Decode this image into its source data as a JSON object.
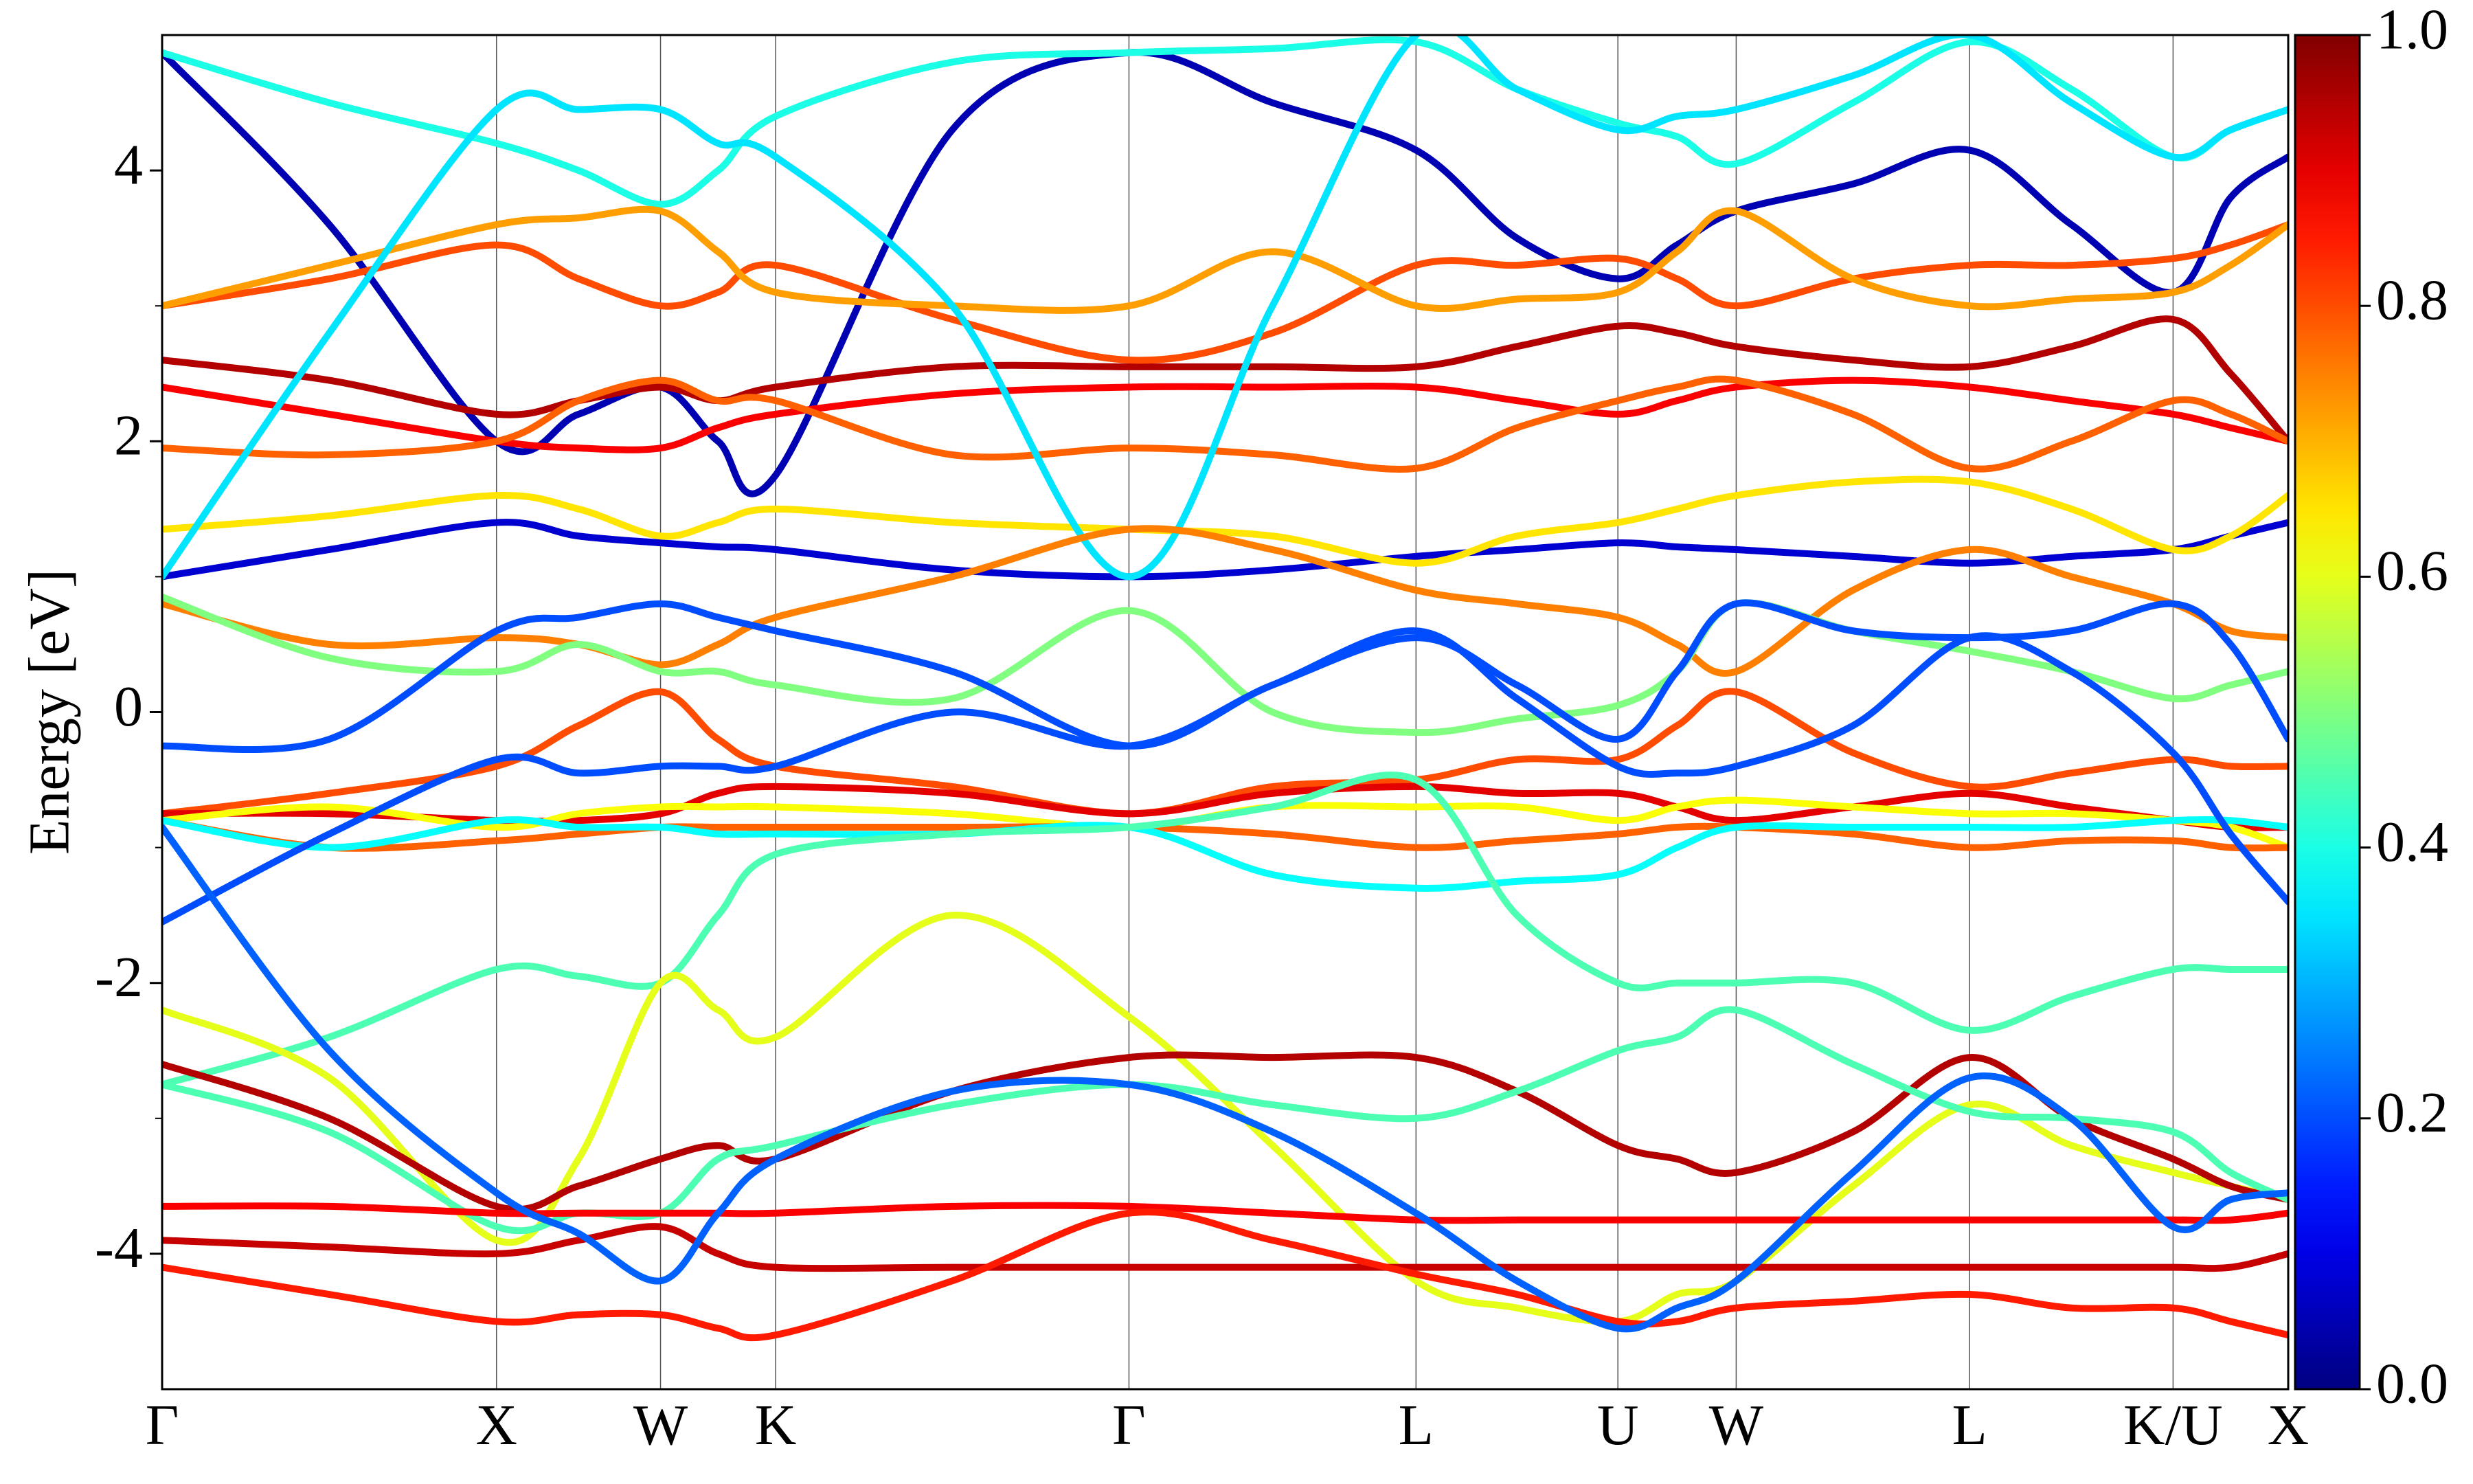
{
  "chart_data": {
    "type": "band",
    "ylabel": "Energy [eV]",
    "colormap": "jet",
    "xlim": [
      0,
      13.48
    ],
    "ylim": [
      -5,
      5
    ],
    "yticks": [
      -4,
      -2,
      0,
      2,
      4
    ],
    "yminorticks": [
      -3,
      -1,
      1,
      3
    ],
    "xticks": [
      {
        "value": 0,
        "label": "Γ"
      },
      {
        "value": 2.12,
        "label": "X"
      },
      {
        "value": 3.16,
        "label": "W"
      },
      {
        "value": 3.89,
        "label": "K"
      },
      {
        "value": 6.13,
        "label": "Γ"
      },
      {
        "value": 7.95,
        "label": "L"
      },
      {
        "value": 9.23,
        "label": "U"
      },
      {
        "value": 9.98,
        "label": "W"
      },
      {
        "value": 11.46,
        "label": "L"
      },
      {
        "value": 12.75,
        "label": "K/U"
      },
      {
        "value": 13.48,
        "label": "X"
      }
    ],
    "colorbar_lim": [
      0,
      1
    ],
    "colorbar_ticks": [
      {
        "value": 0,
        "label": "0.0"
      },
      0.2,
      0.4,
      0.6,
      0.8,
      {
        "value": 1,
        "label": "1.0"
      }
    ],
    "x": [
      0,
      1.06,
      2.12,
      2.64,
      3.16,
      3.525,
      3.89,
      5.01,
      6.13,
      7.04,
      7.95,
      8.59,
      9.23,
      9.605,
      9.98,
      10.72,
      11.46,
      12.105,
      12.75,
      13.115,
      13.48
    ],
    "series": [
      {
        "weight": 0.05,
        "values": [
          4.87,
          3.6,
          2.0,
          2.2,
          2.4,
          2.0,
          1.75,
          4.3,
          4.87,
          4.5,
          4.15,
          3.5,
          3.2,
          3.45,
          3.7,
          3.9,
          4.15,
          3.6,
          3.1,
          3.8,
          4.1
        ]
      },
      {
        "weight": 0.4,
        "values": [
          4.87,
          4.5,
          4.2,
          4.0,
          3.75,
          4.0,
          4.4,
          4.8,
          4.87,
          4.9,
          4.95,
          4.6,
          4.35,
          4.25,
          4.05,
          4.5,
          4.95,
          4.6,
          4.1,
          4.3,
          4.45
        ]
      },
      {
        "weight": 0.08,
        "values": [
          1.0,
          1.2,
          1.4,
          1.3,
          1.25,
          1.22,
          1.2,
          1.05,
          1.0,
          1.05,
          1.15,
          1.2,
          1.25,
          1.22,
          1.2,
          1.15,
          1.1,
          1.15,
          1.2,
          1.3,
          1.4
        ]
      },
      {
        "weight": 0.95,
        "values": [
          2.6,
          2.45,
          2.2,
          2.3,
          2.4,
          2.3,
          2.4,
          2.55,
          2.55,
          2.55,
          2.55,
          2.7,
          2.85,
          2.8,
          2.7,
          2.6,
          2.55,
          2.7,
          2.9,
          2.5,
          2.0
        ]
      },
      {
        "weight": 0.88,
        "values": [
          2.4,
          2.2,
          2.0,
          1.95,
          1.95,
          2.1,
          2.2,
          2.35,
          2.4,
          2.4,
          2.4,
          2.3,
          2.2,
          2.3,
          2.4,
          2.45,
          2.4,
          2.3,
          2.2,
          2.1,
          2.0
        ]
      },
      {
        "weight": 0.8,
        "values": [
          3.0,
          3.2,
          3.45,
          3.2,
          3.0,
          3.1,
          3.3,
          2.9,
          2.6,
          2.8,
          3.3,
          3.3,
          3.35,
          3.2,
          3.0,
          3.2,
          3.3,
          3.3,
          3.35,
          3.45,
          3.6
        ]
      },
      {
        "weight": 0.78,
        "values": [
          1.95,
          1.9,
          2.0,
          2.3,
          2.45,
          2.3,
          2.3,
          1.9,
          1.95,
          1.9,
          1.8,
          2.1,
          2.3,
          2.4,
          2.45,
          2.2,
          1.8,
          2.0,
          2.3,
          2.2,
          2.0
        ]
      },
      {
        "weight": 0.65,
        "values": [
          1.35,
          1.45,
          1.6,
          1.5,
          1.3,
          1.4,
          1.5,
          1.4,
          1.35,
          1.3,
          1.1,
          1.3,
          1.4,
          1.5,
          1.6,
          1.7,
          1.7,
          1.5,
          1.2,
          1.3,
          1.6
        ]
      },
      {
        "weight": 0.72,
        "values": [
          3.0,
          3.3,
          3.6,
          3.65,
          3.7,
          3.4,
          3.1,
          3.0,
          3.0,
          3.4,
          3.0,
          3.05,
          3.1,
          3.4,
          3.7,
          3.2,
          3.0,
          3.05,
          3.1,
          3.3,
          3.6
        ]
      },
      {
        "weight": 0.35,
        "values": [
          1.0,
          2.8,
          4.45,
          4.45,
          4.45,
          4.2,
          4.1,
          3.0,
          1.0,
          3.0,
          5.0,
          4.6,
          4.3,
          4.4,
          4.45,
          4.7,
          5.0,
          4.5,
          4.1,
          4.3,
          4.45
        ]
      },
      {
        "weight": 0.75,
        "values": [
          0.8,
          0.5,
          0.55,
          0.5,
          0.35,
          0.5,
          0.7,
          1.0,
          1.35,
          1.2,
          0.9,
          0.8,
          0.7,
          0.5,
          0.3,
          0.9,
          1.2,
          1.0,
          0.8,
          0.6,
          0.55
        ]
      },
      {
        "weight": 0.5,
        "values": [
          0.85,
          0.4,
          0.3,
          0.5,
          0.3,
          0.3,
          0.2,
          0.1,
          0.75,
          0.0,
          -0.15,
          -0.05,
          0.05,
          0.3,
          0.8,
          0.6,
          0.45,
          0.3,
          0.1,
          0.2,
          0.3
        ]
      },
      {
        "weight": 0.2,
        "values": [
          -0.25,
          -0.2,
          0.6,
          0.7,
          0.8,
          0.7,
          0.6,
          0.3,
          -0.25,
          0.2,
          0.55,
          0.2,
          -0.2,
          0.3,
          0.8,
          0.6,
          0.55,
          0.6,
          0.8,
          0.5,
          -0.2
        ]
      },
      {
        "weight": 0.8,
        "values": [
          -0.75,
          -0.6,
          -0.4,
          -0.1,
          0.15,
          -0.2,
          -0.4,
          -0.55,
          -0.75,
          -0.55,
          -0.5,
          -0.35,
          -0.35,
          -0.1,
          0.15,
          -0.3,
          -0.55,
          -0.45,
          -0.35,
          -0.4,
          -0.4
        ]
      },
      {
        "weight": 0.9,
        "values": [
          -0.75,
          -0.75,
          -0.8,
          -0.8,
          -0.75,
          -0.6,
          -0.55,
          -0.6,
          -0.75,
          -0.6,
          -0.55,
          -0.6,
          -0.6,
          -0.7,
          -0.8,
          -0.7,
          -0.6,
          -0.7,
          -0.8,
          -0.85,
          -0.85
        ]
      },
      {
        "weight": 0.62,
        "values": [
          -0.8,
          -0.7,
          -0.85,
          -0.75,
          -0.7,
          -0.7,
          -0.7,
          -0.75,
          -0.85,
          -0.7,
          -0.7,
          -0.7,
          -0.8,
          -0.7,
          -0.65,
          -0.7,
          -0.75,
          -0.75,
          -0.8,
          -0.85,
          -1.0
        ]
      },
      {
        "weight": 0.78,
        "values": [
          -0.8,
          -1.0,
          -0.95,
          -0.9,
          -0.85,
          -0.85,
          -0.85,
          -0.85,
          -0.85,
          -0.9,
          -1.0,
          -0.95,
          -0.9,
          -0.85,
          -0.85,
          -0.9,
          -1.0,
          -0.95,
          -0.95,
          -1.0,
          -1.0
        ]
      },
      {
        "weight": 0.38,
        "values": [
          -0.8,
          -1.0,
          -0.8,
          -0.85,
          -0.85,
          -0.9,
          -0.9,
          -0.9,
          -0.85,
          -1.2,
          -1.3,
          -1.25,
          -1.2,
          -1.0,
          -0.85,
          -0.85,
          -0.85,
          -0.85,
          -0.8,
          -0.8,
          -0.85
        ]
      },
      {
        "weight": 0.2,
        "values": [
          -1.55,
          -0.9,
          -0.35,
          -0.45,
          -0.4,
          -0.4,
          -0.4,
          0.0,
          -0.25,
          0.2,
          0.6,
          0.1,
          -0.4,
          -0.45,
          -0.4,
          -0.1,
          0.55,
          0.3,
          -0.3,
          -0.9,
          -1.4
        ]
      },
      {
        "weight": 0.45,
        "values": [
          -2.75,
          -2.4,
          -1.9,
          -1.95,
          -2.0,
          -1.5,
          -1.05,
          -0.9,
          -0.85,
          -0.7,
          -0.5,
          -1.5,
          -2.0,
          -2.0,
          -2.0,
          -2.0,
          -2.35,
          -2.1,
          -1.9,
          -1.9,
          -1.9
        ]
      },
      {
        "weight": 0.6,
        "values": [
          -2.2,
          -2.7,
          -3.9,
          -3.3,
          -2.0,
          -2.2,
          -2.4,
          -1.5,
          -2.25,
          -3.2,
          -4.2,
          -4.4,
          -4.5,
          -4.3,
          -4.2,
          -3.5,
          -2.9,
          -3.2,
          -3.4,
          -3.5,
          -3.6
        ]
      },
      {
        "weight": 0.95,
        "values": [
          -2.6,
          -3.0,
          -3.65,
          -3.5,
          -3.3,
          -3.2,
          -3.3,
          -2.8,
          -2.55,
          -2.55,
          -2.55,
          -2.8,
          -3.2,
          -3.3,
          -3.4,
          -3.1,
          -2.55,
          -3.0,
          -3.3,
          -3.5,
          -3.6
        ]
      },
      {
        "weight": 0.45,
        "values": [
          -2.75,
          -3.1,
          -3.8,
          -3.7,
          -3.7,
          -3.3,
          -3.2,
          -2.9,
          -2.75,
          -2.9,
          -3.0,
          -2.8,
          -2.5,
          -2.4,
          -2.2,
          -2.6,
          -2.95,
          -3.0,
          -3.1,
          -3.4,
          -3.6
        ]
      },
      {
        "weight": 0.88,
        "values": [
          -3.65,
          -3.65,
          -3.7,
          -3.7,
          -3.7,
          -3.7,
          -3.7,
          -3.65,
          -3.65,
          -3.7,
          -3.75,
          -3.75,
          -3.75,
          -3.75,
          -3.75,
          -3.75,
          -3.75,
          -3.75,
          -3.75,
          -3.75,
          -3.7
        ]
      },
      {
        "weight": 0.93,
        "values": [
          -3.9,
          -3.95,
          -4.0,
          -3.9,
          -3.8,
          -4.0,
          -4.1,
          -4.1,
          -4.1,
          -4.1,
          -4.1,
          -4.1,
          -4.1,
          -4.1,
          -4.1,
          -4.1,
          -4.1,
          -4.1,
          -4.1,
          -4.1,
          -4.0
        ]
      },
      {
        "weight": 0.85,
        "values": [
          -4.1,
          -4.3,
          -4.5,
          -4.45,
          -4.45,
          -4.55,
          -4.6,
          -4.2,
          -3.7,
          -3.9,
          -4.15,
          -4.3,
          -4.5,
          -4.5,
          -4.4,
          -4.35,
          -4.3,
          -4.4,
          -4.4,
          -4.5,
          -4.6
        ]
      },
      {
        "weight": 0.22,
        "values": [
          -0.85,
          -2.5,
          -3.55,
          -3.85,
          -4.2,
          -3.7,
          -3.3,
          -2.8,
          -2.75,
          -3.1,
          -3.7,
          -4.2,
          -4.55,
          -4.4,
          -4.2,
          -3.4,
          -2.7,
          -3.0,
          -3.8,
          -3.6,
          -3.55
        ]
      }
    ]
  }
}
